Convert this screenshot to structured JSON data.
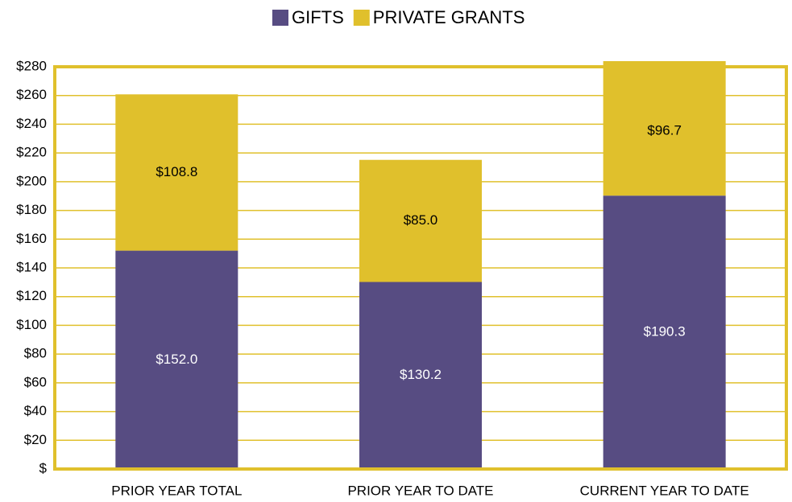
{
  "chart_data": {
    "type": "stacked_bar",
    "categories": [
      "PRIOR YEAR TOTAL",
      "PRIOR YEAR TO DATE",
      "CURRENT YEAR TO DATE"
    ],
    "series": [
      {
        "name": "GIFTS",
        "color": "#574c82",
        "values": [
          152.0,
          130.2,
          190.3
        ],
        "value_labels": [
          "$152.0",
          "$130.2",
          "$190.3"
        ]
      },
      {
        "name": "PRIVATE GRANTS",
        "color": "#e0c02c",
        "values": [
          108.8,
          85.0,
          96.7
        ],
        "value_labels": [
          "$108.8",
          "$85.0",
          "$96.7"
        ]
      }
    ],
    "ylim": [
      0,
      280
    ],
    "yticks": [
      {
        "value": 0,
        "label": "$"
      },
      {
        "value": 20,
        "label": "$20"
      },
      {
        "value": 40,
        "label": "$40"
      },
      {
        "value": 60,
        "label": "$60"
      },
      {
        "value": 80,
        "label": "$80"
      },
      {
        "value": 100,
        "label": "$100"
      },
      {
        "value": 120,
        "label": "$120"
      },
      {
        "value": 140,
        "label": "$140"
      },
      {
        "value": 160,
        "label": "$160"
      },
      {
        "value": 180,
        "label": "$180"
      },
      {
        "value": 200,
        "label": "$200"
      },
      {
        "value": 220,
        "label": "$220"
      },
      {
        "value": 240,
        "label": "$240"
      },
      {
        "value": 260,
        "label": "$260"
      },
      {
        "value": 280,
        "label": "$280"
      }
    ],
    "grid": true,
    "grid_color": "#e0c02c",
    "legend": "top"
  }
}
